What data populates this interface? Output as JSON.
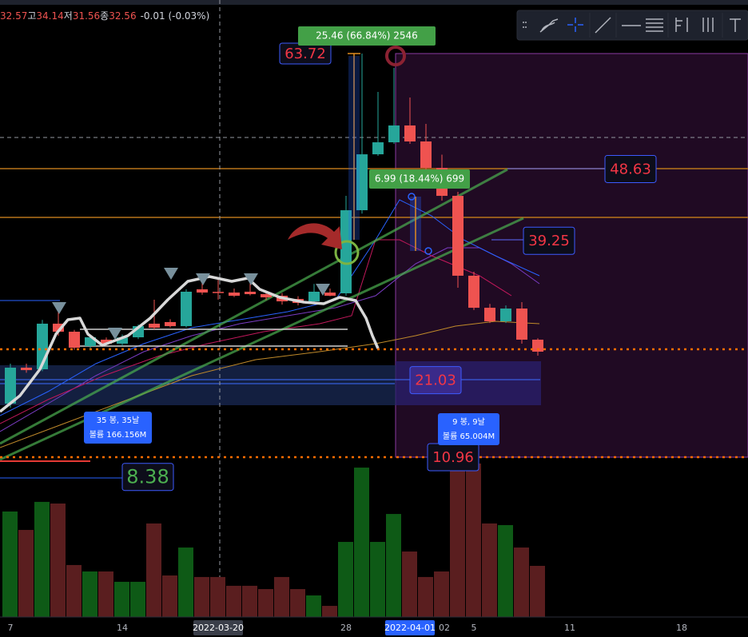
{
  "chart_data": {
    "type": "candlestick",
    "x": [
      "2022-03-07",
      "2022-03-08",
      "2022-03-09",
      "2022-03-10",
      "2022-03-11",
      "2022-03-12",
      "2022-03-13",
      "2022-03-14",
      "2022-03-15",
      "2022-03-16",
      "2022-03-17",
      "2022-03-18",
      "2022-03-19",
      "2022-03-20",
      "2022-03-21",
      "2022-03-22",
      "2022-03-23",
      "2022-03-24",
      "2022-03-25",
      "2022-03-26",
      "2022-03-27",
      "2022-03-28",
      "2022-03-29",
      "2022-03-30",
      "2022-03-31",
      "2022-04-01",
      "2022-04-02",
      "2022-04-03",
      "2022-04-04",
      "2022-04-05",
      "2022-04-06",
      "2022-04-07",
      "2022-04-08",
      "2022-04-09"
    ],
    "open": [
      17.96,
      22.66,
      22.45,
      28.41,
      27.36,
      25.48,
      26.32,
      25.8,
      26.63,
      28.41,
      28.62,
      28.09,
      32.9,
      32.57,
      32.48,
      32.59,
      32.27,
      32.06,
      31.64,
      31.33,
      32.48,
      32.38,
      43.24,
      50.55,
      52.12,
      54.32,
      52.23,
      48.78,
      45.12,
      34.68,
      30.49,
      28.72,
      30.39,
      26.32
    ],
    "high": [
      23.18,
      23.18,
      28.9,
      31.23,
      27.6,
      26.9,
      26.6,
      27.0,
      28.3,
      31.54,
      29.0,
      32.9,
      34.0,
      34.14,
      33.0,
      33.8,
      32.6,
      32.4,
      32.0,
      33.6,
      33.0,
      45.12,
      63.72,
      58.7,
      61.84,
      57.97,
      54.53,
      50.5,
      45.65,
      35.2,
      31.0,
      30.8,
      31.23,
      26.5
    ],
    "low": [
      17.43,
      22.0,
      22.2,
      26.84,
      25.0,
      25.2,
      25.6,
      25.5,
      26.4,
      27.67,
      27.9,
      27.9,
      32.2,
      31.56,
      31.9,
      32.1,
      31.5,
      30.9,
      30.8,
      31.0,
      32.0,
      32.06,
      42.8,
      50.35,
      51.91,
      51.91,
      48.0,
      44.5,
      33.11,
      30.2,
      28.5,
      28.5,
      25.79,
      24.23
    ],
    "close": [
      22.66,
      22.34,
      28.41,
      27.36,
      25.27,
      26.63,
      25.79,
      26.6,
      28.09,
      27.88,
      28.09,
      32.59,
      32.48,
      32.56,
      32.06,
      32.27,
      31.85,
      31.33,
      31.12,
      32.59,
      32.06,
      43.24,
      50.55,
      52.12,
      54.32,
      52.23,
      48.78,
      45.12,
      34.68,
      30.49,
      28.72,
      30.39,
      26.32,
      24.75
    ],
    "volume": [
      8.99,
      7.42,
      9.81,
      9.67,
      4.43,
      3.88,
      3.88,
      3.0,
      3.0,
      7.97,
      3.54,
      5.92,
      3.41,
      3.41,
      2.66,
      2.66,
      2.38,
      3.41,
      2.38,
      1.84,
      0.95,
      6.4,
      12.73,
      6.4,
      8.78,
      5.58,
      3.41,
      3.88,
      12.94,
      13.08,
      7.97,
      7.83,
      5.92,
      4.36
    ],
    "ylim": [
      -10.77,
      70.72
    ],
    "volume_ylim": [
      0,
      52.57
    ],
    "up_color": "#26a69a",
    "down_color": "#ef5350",
    "volume_up_color": "#0e5a16",
    "volume_down_color": "#5a1e1f",
    "xticks": [
      {
        "value": "2022-03-07",
        "label": "7"
      },
      {
        "value": "2022-03-14",
        "label": "14"
      },
      "2022-03-20",
      {
        "value": "2022-03-28",
        "label": "28"
      },
      "2022-04-01",
      {
        "value": "2022-04-02",
        "label": "02"
      },
      {
        "value": "2022-04-05",
        "label": "5"
      },
      {
        "value": "2022-04-11",
        "label": "11"
      },
      {
        "value": "2022-04-18",
        "label": "18"
      }
    ],
    "legend_ohlc": [
      "32.57",
      "고",
      "34.14",
      "저",
      "31.56",
      "종",
      "32.56",
      "-0.01 (-0.03%)"
    ],
    "price_labels": [
      {
        "value": 63.72,
        "color": "#f23645"
      },
      {
        "value": 48.63,
        "color": "#f23645"
      },
      {
        "value": 39.25,
        "color": "#f23645"
      },
      {
        "value": 21.03,
        "color": "#f23645"
      },
      {
        "value": 10.96,
        "color": "#f23645"
      },
      {
        "value": 8.38,
        "color": "#4caf50"
      }
    ],
    "measures": [
      "25.46 (66.84%) 2546",
      "6.99 (18.44%) 699"
    ],
    "ranges": [
      {
        "bars": "35 봉, 35날",
        "volume": "볼륨 166.156M"
      },
      {
        "bars": "9 봉, 9날",
        "volume": "볼륨 65.004M"
      }
    ],
    "dotted_levels": [
      25.07,
      10.96
    ]
  }
}
